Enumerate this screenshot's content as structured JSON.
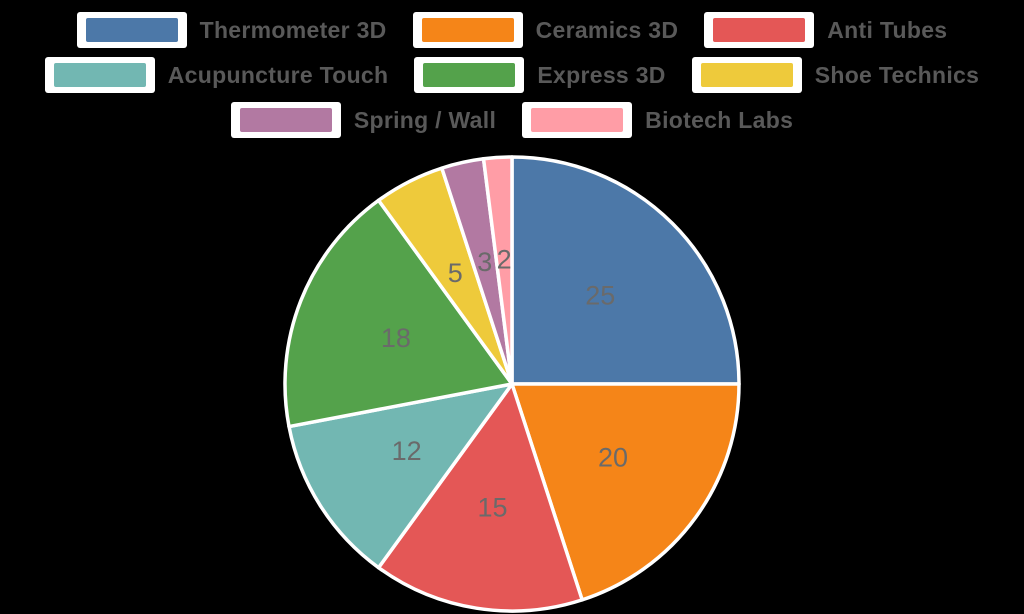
{
  "chart_data": {
    "type": "pie",
    "title": "",
    "start_angle": "top",
    "direction": "clockwise",
    "legend_position": "top",
    "values_total": 100,
    "labels": [
      "Thermometer 3D",
      "Ceramics 3D",
      "Anti Tubes",
      "Acupuncture Touch",
      "Express 3D",
      "Shoe Technics",
      "Spring / Wall",
      "Biotech Labs"
    ],
    "values": [
      25,
      20,
      15,
      12,
      18,
      5,
      3,
      2
    ],
    "value_labels": [
      "25",
      "20",
      "15",
      "12",
      "18",
      "5",
      "3",
      "2"
    ],
    "colors": [
      "#4C78A8",
      "#F58518",
      "#E45756",
      "#72B7B2",
      "#54A24B",
      "#EECA3B",
      "#B279A2",
      "#FF9DA6"
    ],
    "slice_border_color": "#ffffff",
    "value_label_color": "#6a6a6a",
    "legend_swatch_background": "#ffffff",
    "legend_text_color": "#595959",
    "background_color": "#000000"
  }
}
